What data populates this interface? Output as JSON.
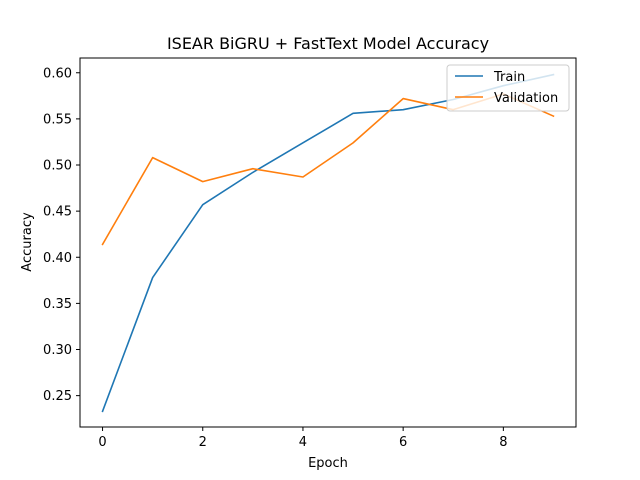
{
  "chart_data": {
    "type": "line",
    "title": "ISEAR BiGRU + FastText Model Accuracy",
    "xlabel": "Epoch",
    "ylabel": "Accuracy",
    "x": [
      0,
      1,
      2,
      3,
      4,
      5,
      6,
      7,
      8,
      9
    ],
    "xlim": [
      -0.45,
      9.45
    ],
    "ylim": [
      0.216,
      0.616
    ],
    "xticks": [
      0,
      2,
      4,
      6,
      8
    ],
    "yticks": [
      0.25,
      0.3,
      0.35,
      0.4,
      0.45,
      0.5,
      0.55,
      0.6
    ],
    "ytick_labels": [
      "0.25",
      "0.30",
      "0.35",
      "0.40",
      "0.45",
      "0.50",
      "0.55",
      "0.60"
    ],
    "grid": false,
    "legend_position": "top-right",
    "series": [
      {
        "name": "Train",
        "color": "#1f77b4",
        "values": [
          0.233,
          0.378,
          0.457,
          0.492,
          0.524,
          0.556,
          0.56,
          0.571,
          0.586,
          0.598
        ]
      },
      {
        "name": "Validation",
        "color": "#ff7f0e",
        "values": [
          0.414,
          0.508,
          0.482,
          0.496,
          0.487,
          0.524,
          0.572,
          0.56,
          0.577,
          0.553
        ]
      }
    ]
  }
}
